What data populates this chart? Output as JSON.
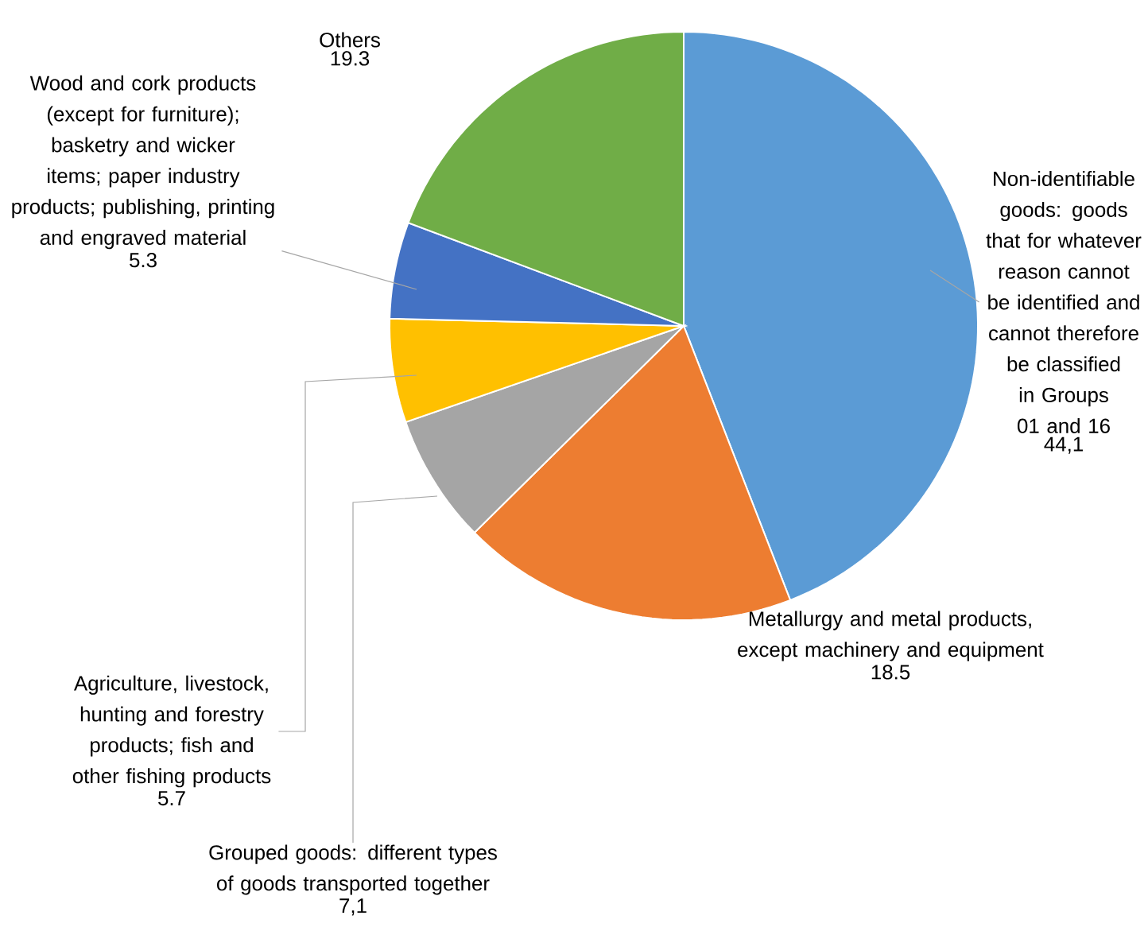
{
  "chart_data": {
    "type": "pie",
    "categories": [
      "Non-identifiable goods: goods that for whatever reason cannot be identified and cannot therefore be classified in Groups 01 and 16",
      "Metallurgy and metal products, except machinery and equipment",
      "Grouped goods: different types of goods transported together",
      "Agriculture, livestock, hunting and forestry products; fish and other fishing products",
      "Wood and cork products (except for furniture); basketry and wicker items; paper industry products; publishing, printing and engraved material",
      "Others"
    ],
    "values": [
      44.1,
      18.5,
      7.1,
      5.7,
      5.3,
      19.3
    ],
    "value_labels": [
      "44,1",
      "18.5",
      "7,1",
      "5.7",
      "5.3",
      "19.3"
    ],
    "colors": [
      "#5b9bd5",
      "#ed7d31",
      "#a5a5a5",
      "#ffc000",
      "#4472c4",
      "#70ad47"
    ]
  }
}
